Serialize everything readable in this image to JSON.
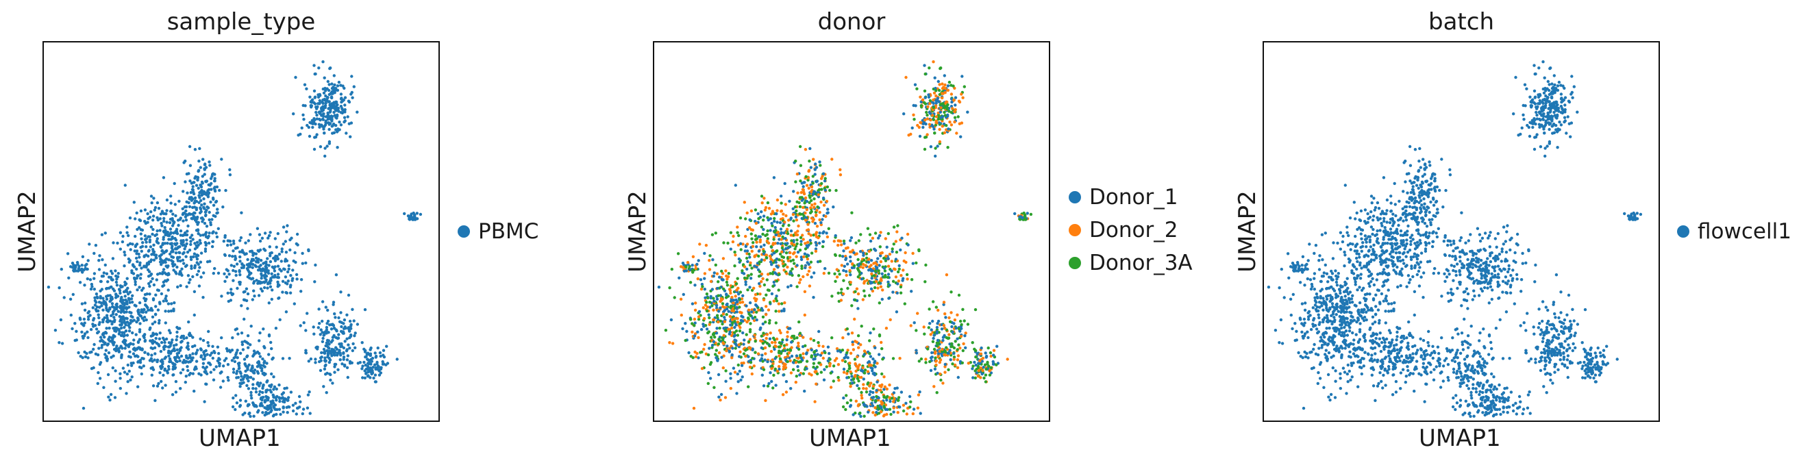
{
  "chart_data": [
    {
      "type": "scatter",
      "title": "sample_type",
      "xlabel": "UMAP1",
      "ylabel": "UMAP2",
      "legend_placement": "right",
      "grid": false,
      "series": [
        {
          "name": "PBMC",
          "color": "#1f77b4"
        }
      ]
    },
    {
      "type": "scatter",
      "title": "donor",
      "xlabel": "UMAP1",
      "ylabel": "UMAP2",
      "legend_placement": "right",
      "grid": false,
      "series": [
        {
          "name": "Donor_1",
          "color": "#1f77b4"
        },
        {
          "name": "Donor_2",
          "color": "#ff7f0e"
        },
        {
          "name": "Donor_3A",
          "color": "#2ca02c"
        }
      ]
    },
    {
      "type": "scatter",
      "title": "batch",
      "xlabel": "UMAP1",
      "ylabel": "UMAP2",
      "legend_placement": "right",
      "grid": false,
      "series": [
        {
          "name": "flowcell1",
          "color": "#1f77b4"
        }
      ]
    }
  ]
}
